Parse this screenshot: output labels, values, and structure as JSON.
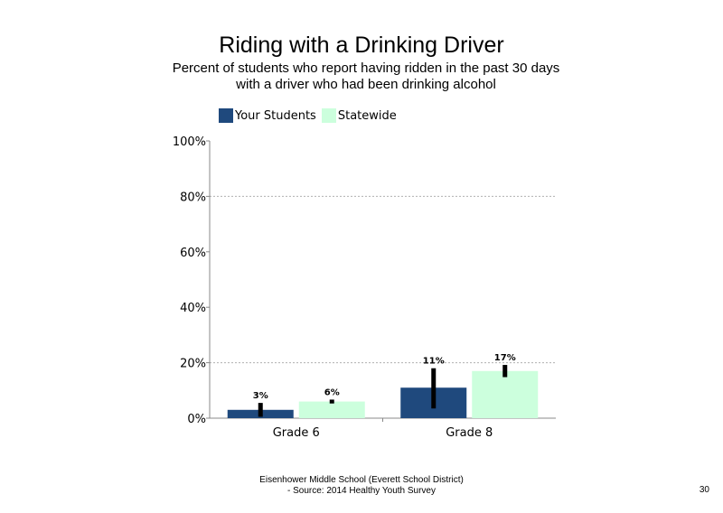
{
  "chart_data": {
    "type": "bar",
    "title": "Riding with a Drinking Driver",
    "subtitle_line1": "Percent of students who report having ridden in the past 30 days",
    "subtitle_line2": "with a driver who had been drinking alcohol",
    "categories": [
      "Grade 6",
      "Grade 8"
    ],
    "series": [
      {
        "name": "Your Students",
        "color": "#1f497d",
        "values": [
          3,
          11
        ],
        "labels": [
          "3%",
          "11%"
        ],
        "error_low": [
          0.5,
          3.5
        ],
        "error_high": [
          5.5,
          18
        ]
      },
      {
        "name": "Statewide",
        "color": "#ccffdd",
        "values": [
          6,
          17
        ],
        "labels": [
          "6%",
          "17%"
        ],
        "error_low": [
          5.3,
          14.8
        ],
        "error_high": [
          6.7,
          19.2
        ]
      }
    ],
    "ylim": [
      0,
      100
    ],
    "yticks": [
      0,
      20,
      40,
      60,
      80,
      100
    ],
    "ytick_labels": [
      "0%",
      "20%",
      "40%",
      "60%",
      "80%",
      "100%"
    ],
    "gridlines": [
      20,
      80
    ],
    "legend_position": "top-left",
    "xlabel": "",
    "ylabel": ""
  },
  "footer": {
    "line1": "Eisenhower Middle School (Everett School District)",
    "line2": "- Source: 2014 Healthy Youth Survey"
  },
  "page_number": "30"
}
